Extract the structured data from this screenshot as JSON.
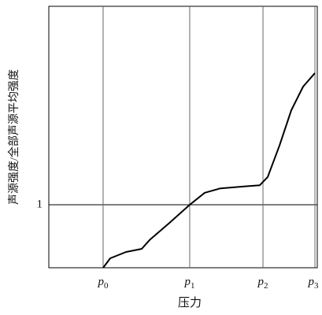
{
  "chart_data": {
    "type": "line",
    "xlabel": "压力",
    "ylabel": "声源强度/全部声源平均强度",
    "x": [
      0.627,
      0.709,
      0.891,
      1.073,
      1.164,
      1.391,
      1.627,
      1.8,
      1.982,
      2.255,
      2.436,
      2.527,
      2.664,
      2.8,
      2.936,
      3.073
    ],
    "series": [
      {
        "color": "#000000",
        "values": [
          0,
          0.15,
          0.25,
          0.3,
          0.44,
          0.71,
          1.0,
          1.19,
          1.26,
          1.29,
          1.31,
          1.44,
          1.94,
          2.5,
          2.875,
          3.09
        ]
      }
    ],
    "xlim": [
      0,
      3.1
    ],
    "ylim": [
      0,
      4.15
    ],
    "xticks": [
      {
        "value": 0.627,
        "label": "p0"
      },
      {
        "value": 1.627,
        "label": "p1"
      },
      {
        "value": 2.473,
        "label": "p2"
      },
      {
        "value": 3.073,
        "label": "p3"
      }
    ],
    "yticks": [
      1
    ],
    "grid": true
  }
}
